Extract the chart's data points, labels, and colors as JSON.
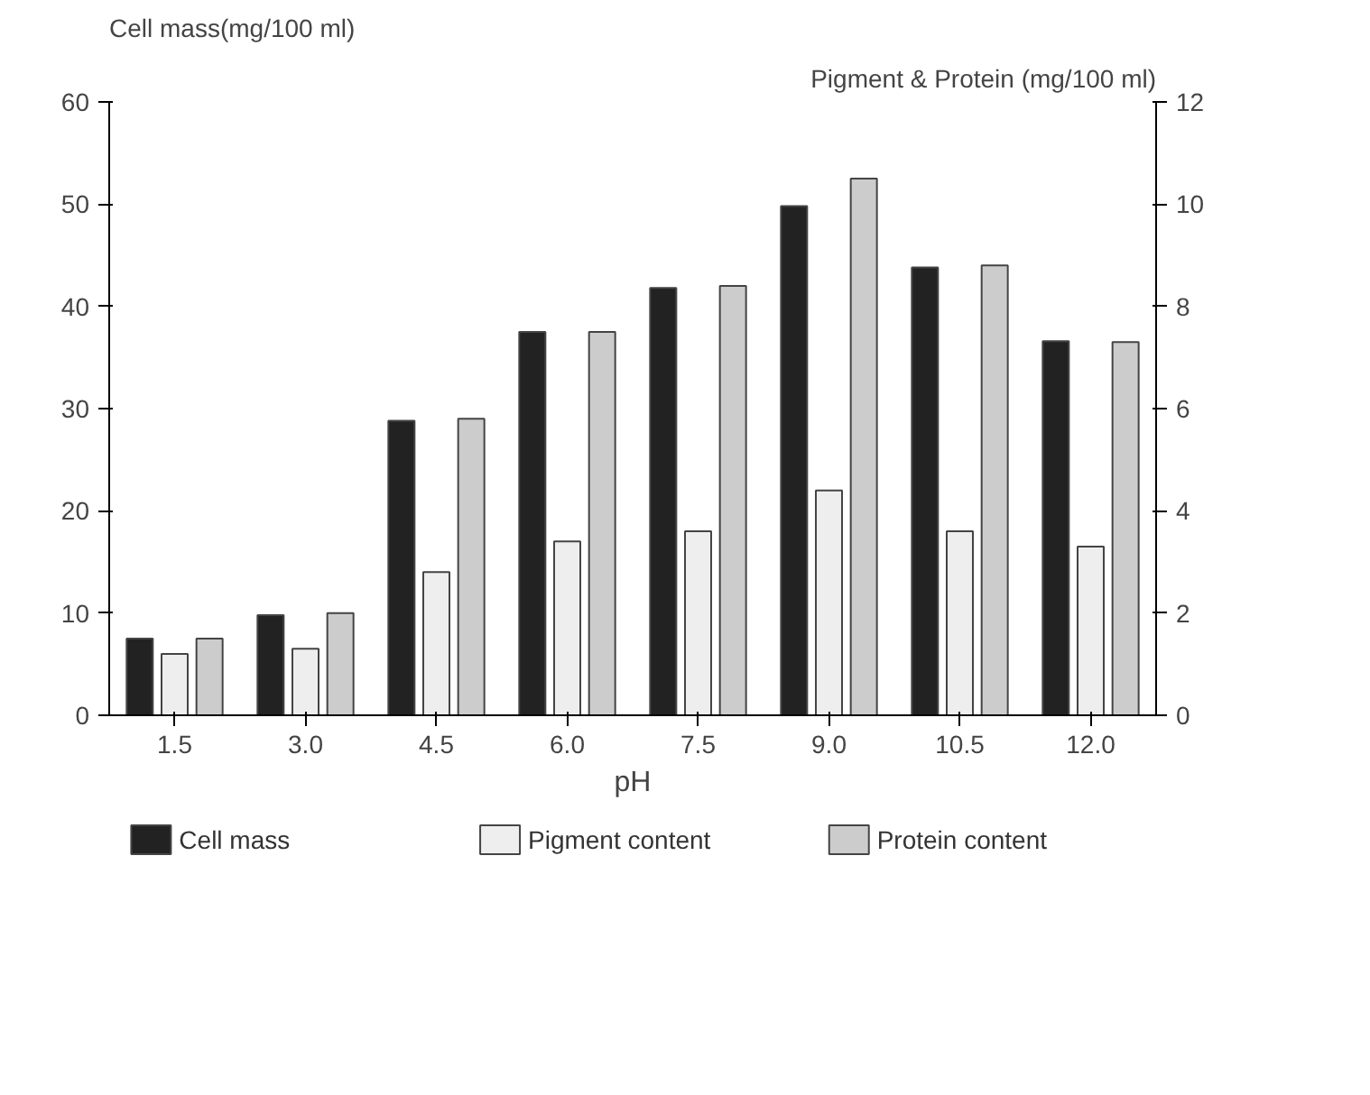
{
  "chart_data": {
    "type": "bar",
    "categories": [
      "1.5",
      "3.0",
      "4.5",
      "6.0",
      "7.5",
      "9.0",
      "10.5",
      "12.0"
    ],
    "xlabel": "pH",
    "ylabel": "Cell mass(mg/100 ml)",
    "y2label": "Pigment & Protein (mg/100 ml)",
    "ylim": [
      0,
      60
    ],
    "yticks": [
      0,
      10,
      20,
      30,
      40,
      50,
      60
    ],
    "y2lim": [
      0,
      12
    ],
    "y2ticks": [
      0,
      2,
      4,
      6,
      8,
      10,
      12
    ],
    "series": [
      {
        "name": "Cell mass",
        "color": "#222222",
        "values": [
          7.5,
          9.8,
          28.8,
          37.5,
          41.8,
          49.8,
          43.8,
          36.6
        ]
      },
      {
        "name": "Pigment content",
        "color": "#eeeeee",
        "axis": "y2",
        "values": [
          1.2,
          1.3,
          2.8,
          3.4,
          3.6,
          4.4,
          3.6,
          3.3
        ]
      },
      {
        "name": "Protein content",
        "color": "#cccccc",
        "axis": "y2",
        "values": [
          1.5,
          2.0,
          5.8,
          7.5,
          8.4,
          10.5,
          8.8,
          7.3
        ]
      }
    ],
    "legend": "bottom",
    "grid": false
  }
}
